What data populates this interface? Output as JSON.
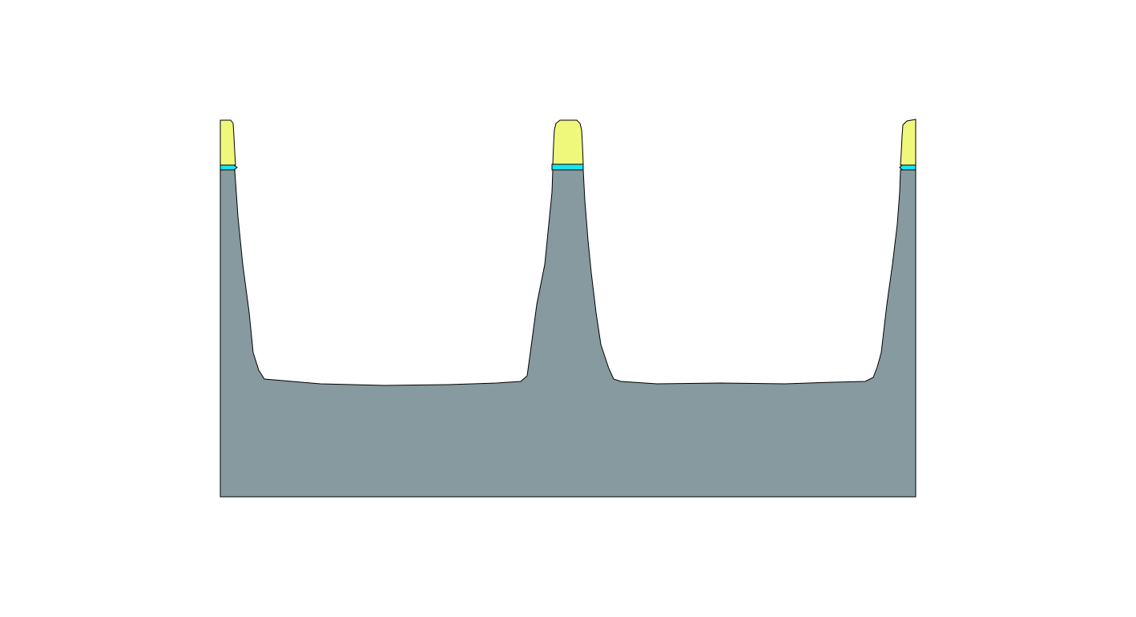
{
  "colors": {
    "background": "#ffffff",
    "substrate": "#869aa0",
    "hardmask": "#f0f87c",
    "pad_layer": "#19e6f0",
    "outline": "#000000"
  },
  "structure": {
    "trench_count": 2,
    "fin_count": 3,
    "layers": [
      "substrate",
      "pad-layer",
      "hardmask"
    ]
  }
}
